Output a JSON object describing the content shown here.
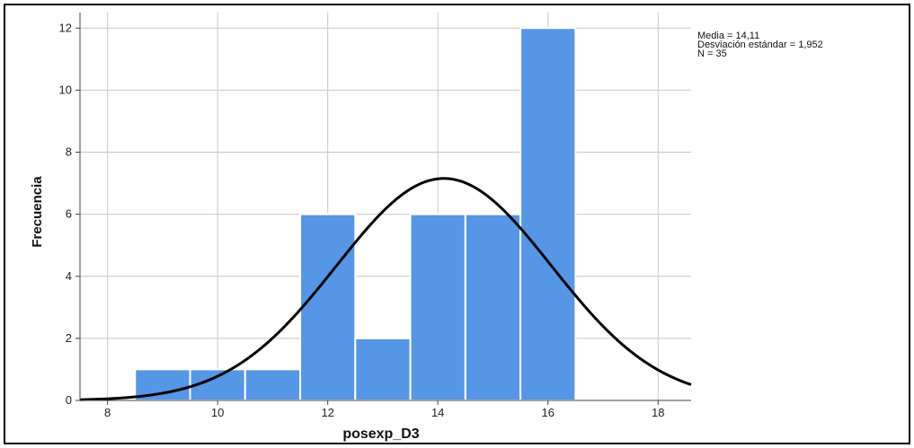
{
  "chart_data": {
    "type": "bar",
    "subtype": "histogram",
    "xlabel": "posexp_D3",
    "ylabel": "Frecuencia",
    "xlim": [
      7.5,
      18.6
    ],
    "ylim": [
      0,
      12.5
    ],
    "x_ticks": [
      8,
      10,
      12,
      14,
      16,
      18
    ],
    "y_ticks": [
      0,
      2,
      4,
      6,
      8,
      10,
      12
    ],
    "grid": true,
    "bins": [
      {
        "start": 8.5,
        "end": 9.5,
        "value": 1
      },
      {
        "start": 9.5,
        "end": 10.5,
        "value": 1
      },
      {
        "start": 10.5,
        "end": 11.5,
        "value": 1
      },
      {
        "start": 11.5,
        "end": 12.5,
        "value": 6
      },
      {
        "start": 12.5,
        "end": 13.5,
        "value": 2
      },
      {
        "start": 13.5,
        "end": 14.5,
        "value": 6
      },
      {
        "start": 14.5,
        "end": 15.5,
        "value": 6
      },
      {
        "start": 15.5,
        "end": 16.5,
        "value": 12
      }
    ],
    "normal_curve": {
      "mean": 14.11,
      "sd": 1.952,
      "n": 35,
      "bin_width": 1
    },
    "stats": [
      "Media = 14,11",
      "Desviación estándar = 1,952",
      "N = 35"
    ],
    "colors": {
      "bar": "#5596e6",
      "bar_edge": "#ffffff",
      "curve": "#000000",
      "grid": "#c8c8c8",
      "axis": "#444444"
    },
    "legend_position": "top-right"
  }
}
